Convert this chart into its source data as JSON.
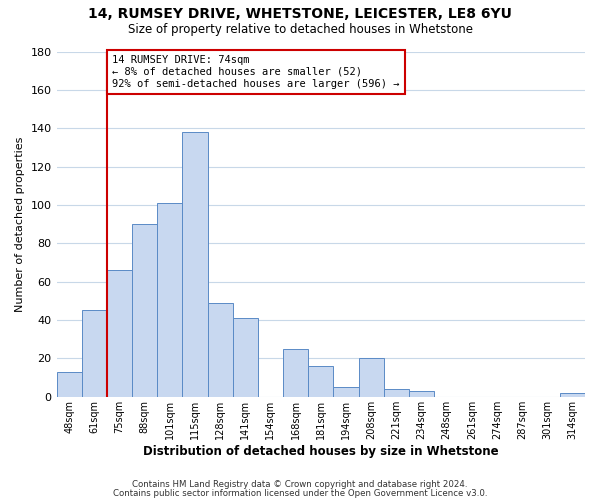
{
  "title": "14, RUMSEY DRIVE, WHETSTONE, LEICESTER, LE8 6YU",
  "subtitle": "Size of property relative to detached houses in Whetstone",
  "xlabel": "Distribution of detached houses by size in Whetstone",
  "ylabel": "Number of detached properties",
  "bar_labels": [
    "48sqm",
    "61sqm",
    "75sqm",
    "88sqm",
    "101sqm",
    "115sqm",
    "128sqm",
    "141sqm",
    "154sqm",
    "168sqm",
    "181sqm",
    "194sqm",
    "208sqm",
    "221sqm",
    "234sqm",
    "248sqm",
    "261sqm",
    "274sqm",
    "287sqm",
    "301sqm",
    "314sqm"
  ],
  "bar_values": [
    13,
    45,
    66,
    90,
    101,
    138,
    49,
    41,
    0,
    25,
    16,
    5,
    20,
    4,
    3,
    0,
    0,
    0,
    0,
    0,
    2
  ],
  "bar_color": "#c8d8f0",
  "bar_edge_color": "#5a8ac6",
  "ylim": [
    0,
    180
  ],
  "yticks": [
    0,
    20,
    40,
    60,
    80,
    100,
    120,
    140,
    160,
    180
  ],
  "property_line_bar_index": 2,
  "property_line_color": "#cc0000",
  "annotation_title": "14 RUMSEY DRIVE: 74sqm",
  "annotation_line1": "← 8% of detached houses are smaller (52)",
  "annotation_line2": "92% of semi-detached houses are larger (596) →",
  "annotation_box_color": "#ffffff",
  "annotation_box_edge": "#cc0000",
  "footer1": "Contains HM Land Registry data © Crown copyright and database right 2024.",
  "footer2": "Contains public sector information licensed under the Open Government Licence v3.0.",
  "background_color": "#ffffff",
  "grid_color": "#c8d8e8"
}
